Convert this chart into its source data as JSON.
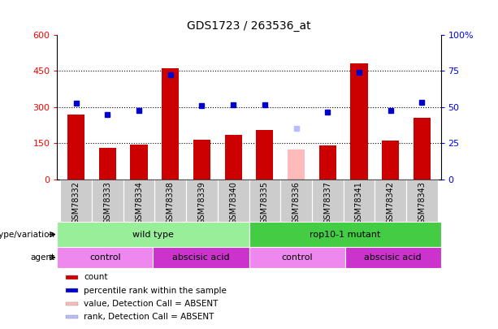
{
  "title": "GDS1723 / 263536_at",
  "samples": [
    "GSM78332",
    "GSM78333",
    "GSM78334",
    "GSM78338",
    "GSM78339",
    "GSM78340",
    "GSM78335",
    "GSM78336",
    "GSM78337",
    "GSM78341",
    "GSM78342",
    "GSM78343"
  ],
  "counts": [
    270,
    130,
    145,
    460,
    165,
    185,
    205,
    125,
    140,
    480,
    160,
    255
  ],
  "absent_count_idx": 7,
  "absent_count_val": 125,
  "percentile_ranks": [
    315,
    270,
    285,
    435,
    305,
    310,
    310,
    210,
    280,
    445,
    285,
    320
  ],
  "absent_rank_idx": 7,
  "absent_rank_val": 210,
  "bar_color_normal": "#cc0000",
  "bar_color_absent": "#ffbbbb",
  "dot_color_normal": "#0000cc",
  "dot_color_absent": "#bbbbff",
  "left_ylim": [
    0,
    600
  ],
  "left_yticks": [
    0,
    150,
    300,
    450,
    600
  ],
  "right_ylabels": [
    "0",
    "25",
    "50",
    "75",
    "100%"
  ],
  "right_ytick_vals": [
    0,
    150,
    300,
    450,
    600
  ],
  "gridlines": [
    150,
    300,
    450
  ],
  "genotype_groups": [
    {
      "label": "wild type",
      "start": 0,
      "end": 6,
      "color": "#99ee99"
    },
    {
      "label": "rop10-1 mutant",
      "start": 6,
      "end": 12,
      "color": "#44cc44"
    }
  ],
  "agent_groups": [
    {
      "label": "control",
      "start": 0,
      "end": 3,
      "color": "#ee88ee"
    },
    {
      "label": "abscisic acid",
      "start": 3,
      "end": 6,
      "color": "#cc33cc"
    },
    {
      "label": "control",
      "start": 6,
      "end": 9,
      "color": "#ee88ee"
    },
    {
      "label": "abscisic acid",
      "start": 9,
      "end": 12,
      "color": "#cc33cc"
    }
  ],
  "legend_items": [
    {
      "label": "count",
      "color": "#cc0000"
    },
    {
      "label": "percentile rank within the sample",
      "color": "#0000cc"
    },
    {
      "label": "value, Detection Call = ABSENT",
      "color": "#ffbbbb"
    },
    {
      "label": "rank, Detection Call = ABSENT",
      "color": "#bbbbff"
    }
  ],
  "title_fontsize": 10,
  "tick_label_fontsize": 7,
  "row_label_fontsize": 7.5,
  "cell_fontsize": 8,
  "legend_fontsize": 7.5
}
